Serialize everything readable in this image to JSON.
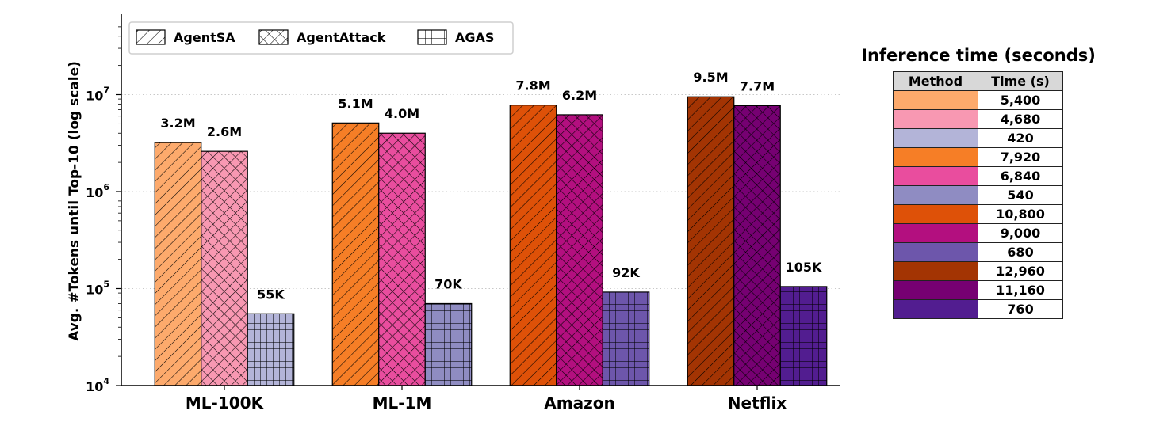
{
  "chart_data": {
    "type": "bar",
    "title": "",
    "xlabel": "",
    "ylabel": "Avg. #Tokens until Top-10  (log scale)",
    "y_scale": "log",
    "ylim": [
      10000,
      50000000
    ],
    "y_ticks": [
      {
        "value": 10000,
        "base": "10",
        "exp": "4"
      },
      {
        "value": 100000,
        "base": "10",
        "exp": "5"
      },
      {
        "value": 1000000,
        "base": "10",
        "exp": "6"
      },
      {
        "value": 10000000,
        "base": "10",
        "exp": "7"
      }
    ],
    "grid": "horizontal dotted at major ticks",
    "legend_position": "top-left",
    "categories": [
      "ML-100K",
      "ML-1M",
      "Amazon",
      "Netflix"
    ],
    "series": [
      {
        "name": "AgentSA",
        "hatch": "diagonal",
        "values": [
          3200000,
          5100000,
          7800000,
          9500000
        ],
        "labels": [
          "3.2M",
          "5.1M",
          "7.8M",
          "9.5M"
        ],
        "colors": [
          "#fdaa6c",
          "#f67e26",
          "#de5108",
          "#a33403"
        ]
      },
      {
        "name": "AgentAttack",
        "hatch": "crosshatch",
        "values": [
          2600000,
          4000000,
          6200000,
          7700000
        ],
        "labels": [
          "2.6M",
          "4.0M",
          "6.2M",
          "7.7M"
        ],
        "colors": [
          "#f898b2",
          "#e94d9e",
          "#b30f7f",
          "#760072"
        ]
      },
      {
        "name": "AGAS",
        "hatch": "grid",
        "values": [
          55000,
          70000,
          92000,
          105000
        ],
        "labels": [
          "55K",
          "70K",
          "92K",
          "105K"
        ],
        "colors": [
          "#b3b4d8",
          "#8f8cc2",
          "#6d56ab",
          "#521d90"
        ]
      }
    ]
  },
  "inference_table": {
    "title": "Inference time (seconds)",
    "headers": [
      "Method",
      "Time (s)"
    ],
    "rows": [
      {
        "color": "#fdaa6c",
        "time": "5,400"
      },
      {
        "color": "#f898b2",
        "time": "4,680"
      },
      {
        "color": "#b3b4d8",
        "time": "420"
      },
      {
        "color": "#f67e26",
        "time": "7,920"
      },
      {
        "color": "#e94d9e",
        "time": "6,840"
      },
      {
        "color": "#8f8cc2",
        "time": "540"
      },
      {
        "color": "#de5108",
        "time": "10,800"
      },
      {
        "color": "#b30f7f",
        "time": "9,000"
      },
      {
        "color": "#6d56ab",
        "time": "680"
      },
      {
        "color": "#a33403",
        "time": "12,960"
      },
      {
        "color": "#760072",
        "time": "11,160"
      },
      {
        "color": "#521d90",
        "time": "760"
      }
    ]
  }
}
